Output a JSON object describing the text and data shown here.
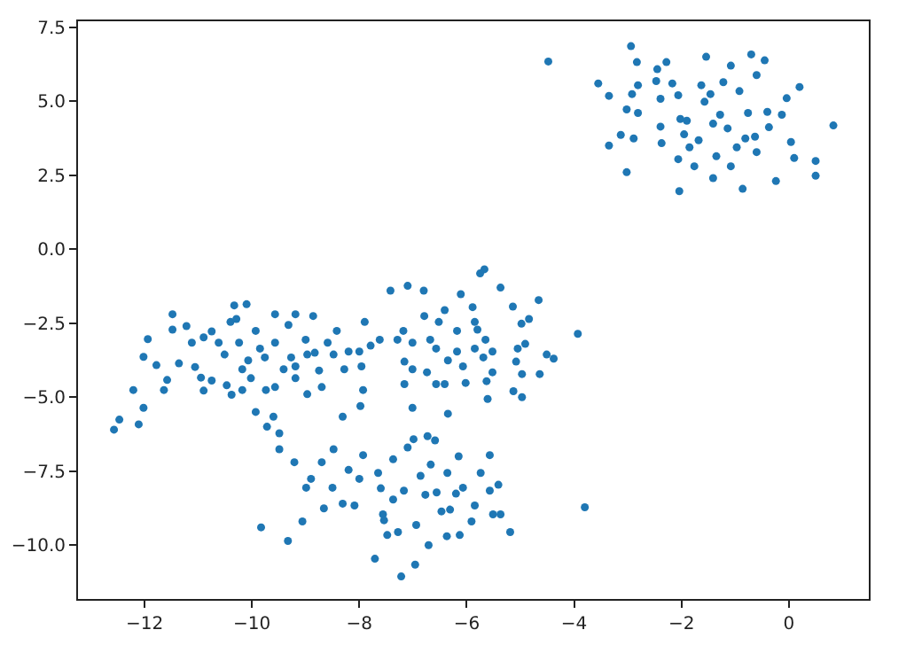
{
  "chart_data": {
    "type": "scatter",
    "marker": "circle",
    "grid": false,
    "xlim": [
      -13.24,
      1.49
    ],
    "ylim": [
      -11.82,
      7.7
    ],
    "xticks": [
      {
        "value": -12,
        "label": "−12"
      },
      {
        "value": -10,
        "label": "−10"
      },
      {
        "value": -8,
        "label": "−8"
      },
      {
        "value": -6,
        "label": "−6"
      },
      {
        "value": -4,
        "label": "−4"
      },
      {
        "value": -2,
        "label": "−2"
      },
      {
        "value": 0,
        "label": "0"
      }
    ],
    "yticks": [
      {
        "value": 7.5,
        "label": "7.5"
      },
      {
        "value": 5,
        "label": "5.0"
      },
      {
        "value": 2.5,
        "label": "2.5"
      },
      {
        "value": 0,
        "label": "0.0"
      },
      {
        "value": -2.5,
        "label": "−2.5"
      },
      {
        "value": -5,
        "label": "−5.0"
      },
      {
        "value": -7.5,
        "label": "−7.5"
      },
      {
        "value": -10,
        "label": "−10.0"
      }
    ],
    "series": [
      {
        "color": "#1f77b4",
        "x": [
          -4.48,
          -2.94,
          -3.55,
          -3.35,
          -3.35,
          -3.02,
          -3.13,
          -2.83,
          -2.81,
          -2.92,
          -3.02,
          -2.81,
          -2.89,
          -2.45,
          -2.28,
          -2.47,
          -2.39,
          -2.39,
          -2.37,
          -2.17,
          -2.06,
          -2.02,
          -2.06,
          -2.04,
          -1.95,
          -1.9,
          -1.85,
          -1.76,
          -1.68,
          -1.63,
          -1.54,
          -1.57,
          -1.46,
          -1.41,
          -1.35,
          -1.41,
          -1.22,
          -1.28,
          -1.08,
          -1.08,
          -1.14,
          -0.92,
          -0.86,
          -0.97,
          -0.81,
          -0.7,
          -0.76,
          -0.6,
          -0.6,
          -0.63,
          -0.45,
          -0.4,
          -0.37,
          -0.24,
          -0.13,
          -0.04,
          0.04,
          0.2,
          0.1,
          0.5,
          0.5,
          0.83,
          -5.67,
          -5.75,
          -6.11,
          -7.42,
          -7.1,
          -6.8,
          -5.89,
          -5.37,
          -5.14,
          -4.66,
          -4.84,
          -4.98,
          -3.93,
          -4.51,
          -4.38,
          -4.91,
          -5.05,
          -5.08,
          -4.97,
          -4.64,
          -4.97,
          -5.13,
          -5.63,
          -5.61,
          -5.52,
          -5.52,
          -5.65,
          -5.85,
          -6.18,
          -6.41,
          -6.52,
          -6.57,
          -6.35,
          -6.41,
          -6.35,
          -6.74,
          -6.68,
          -6.79,
          -7.01,
          -7.18,
          -7.29,
          -7.16,
          -7.01,
          -7.16,
          -7.01,
          -6.07,
          -5.85,
          -5.8,
          -5.69,
          -6.18,
          -6.57,
          -6.02,
          -12.57,
          -12.47,
          -12.11,
          -12.02,
          -12.21,
          -12.02,
          -11.94,
          -11.78,
          -11.64,
          -11.58,
          -11.48,
          -11.48,
          -11.36,
          -11.22,
          -11.12,
          -11.06,
          -10.95,
          -10.9,
          -10.9,
          -10.75,
          -10.75,
          -10.62,
          -10.51,
          -10.47,
          -10.38,
          -10.4,
          -10.33,
          -10.29,
          -10.24,
          -10.18,
          -10.18,
          -10.1,
          -10.07,
          -10.02,
          -9.93,
          -9.85,
          -9.93,
          -9.74,
          -9.72,
          -9.76,
          -9.57,
          -9.57,
          -9.57,
          -9.6,
          -9.49,
          -9.49,
          -9.41,
          -9.32,
          -9.27,
          -9.19,
          -9.19,
          -9.19,
          -9.0,
          -8.97,
          -8.97,
          -8.86,
          -8.75,
          -8.7,
          -8.59,
          -8.42,
          -8.31,
          -8.28,
          -8.2,
          -8.0,
          -7.96,
          -7.9,
          -7.98,
          -7.93,
          -7.79,
          -7.62,
          -8.48,
          -8.83,
          -9.83,
          -9.33,
          -9.21,
          -9.06,
          -8.99,
          -8.9,
          -8.7,
          -8.66,
          -8.48,
          -8.5,
          -8.31,
          -8.2,
          -8.09,
          -8.0,
          -7.93,
          -7.71,
          -7.65,
          -7.6,
          -7.56,
          -7.54,
          -7.48,
          -7.37,
          -7.37,
          -7.28,
          -7.22,
          -7.17,
          -7.1,
          -6.99,
          -6.96,
          -6.94,
          -6.86,
          -6.77,
          -6.73,
          -6.71,
          -6.67,
          -6.59,
          -6.56,
          -6.47,
          -6.37,
          -6.36,
          -6.31,
          -6.2,
          -6.15,
          -6.13,
          -6.07,
          -5.91,
          -5.85,
          -5.74,
          -5.57,
          -5.57,
          -5.51,
          -5.41,
          -5.37,
          -5.19,
          -3.8
        ],
        "values": [
          6.34,
          6.86,
          5.6,
          5.18,
          3.5,
          2.6,
          3.86,
          6.32,
          5.54,
          5.24,
          4.72,
          4.6,
          3.74,
          6.08,
          6.32,
          5.68,
          5.08,
          4.14,
          3.58,
          5.6,
          5.2,
          4.4,
          3.04,
          1.96,
          3.88,
          4.34,
          3.44,
          2.8,
          3.68,
          5.54,
          6.5,
          4.98,
          5.24,
          2.4,
          3.14,
          4.24,
          5.64,
          4.54,
          6.2,
          2.8,
          4.08,
          5.34,
          2.04,
          3.44,
          3.74,
          6.58,
          4.6,
          5.88,
          3.28,
          3.8,
          6.38,
          4.64,
          4.12,
          2.3,
          4.54,
          5.1,
          3.62,
          5.48,
          3.08,
          2.98,
          2.48,
          4.18,
          -0.68,
          -0.82,
          -1.52,
          -1.4,
          -1.24,
          -1.4,
          -1.96,
          -1.3,
          -1.94,
          -1.72,
          -2.36,
          -2.52,
          -2.86,
          -3.56,
          -3.7,
          -3.2,
          -3.36,
          -3.8,
          -4.22,
          -4.22,
          -5.0,
          -4.8,
          -4.46,
          -5.06,
          -4.16,
          -3.46,
          -3.06,
          -2.46,
          -2.76,
          -2.06,
          -2.46,
          -3.36,
          -3.76,
          -4.56,
          -5.56,
          -4.16,
          -3.06,
          -2.26,
          -3.16,
          -2.76,
          -3.06,
          -3.8,
          -4.06,
          -4.56,
          -5.36,
          -3.96,
          -3.36,
          -2.72,
          -3.66,
          -3.46,
          -4.56,
          -4.52,
          -6.1,
          -5.76,
          -5.92,
          -5.36,
          -4.76,
          -3.64,
          -3.04,
          -3.92,
          -4.76,
          -4.42,
          -2.2,
          -2.72,
          -3.86,
          -2.6,
          -3.16,
          -3.98,
          -4.34,
          -4.78,
          -2.98,
          -2.78,
          -4.44,
          -3.16,
          -3.56,
          -4.6,
          -4.92,
          -2.46,
          -1.9,
          -2.36,
          -3.16,
          -4.06,
          -4.76,
          -1.86,
          -3.76,
          -4.36,
          -5.5,
          -3.36,
          -2.76,
          -4.76,
          -6.0,
          -3.66,
          -2.2,
          -3.16,
          -4.66,
          -5.66,
          -6.22,
          -6.76,
          -4.06,
          -2.56,
          -3.66,
          -2.2,
          -4.36,
          -3.96,
          -3.06,
          -3.56,
          -4.9,
          -2.26,
          -4.1,
          -4.66,
          -3.16,
          -2.76,
          -5.66,
          -4.06,
          -3.46,
          -3.46,
          -3.96,
          -2.46,
          -5.3,
          -4.76,
          -3.26,
          -3.06,
          -3.56,
          -3.5,
          -9.4,
          -9.86,
          -7.2,
          -9.2,
          -8.06,
          -7.76,
          -7.2,
          -8.76,
          -6.76,
          -8.06,
          -8.6,
          -7.46,
          -8.66,
          -7.76,
          -6.96,
          -10.46,
          -7.56,
          -8.08,
          -8.96,
          -9.16,
          -9.66,
          -8.46,
          -7.1,
          -9.56,
          -11.06,
          -8.16,
          -6.7,
          -6.42,
          -10.66,
          -9.32,
          -7.66,
          -8.3,
          -6.32,
          -10.0,
          -7.28,
          -6.46,
          -8.22,
          -8.86,
          -9.7,
          -7.56,
          -8.8,
          -8.26,
          -7.0,
          -9.66,
          -8.06,
          -9.2,
          -8.66,
          -7.56,
          -6.96,
          -8.16,
          -8.96,
          -7.96,
          -8.96,
          -9.56,
          -8.72
        ]
      }
    ]
  }
}
